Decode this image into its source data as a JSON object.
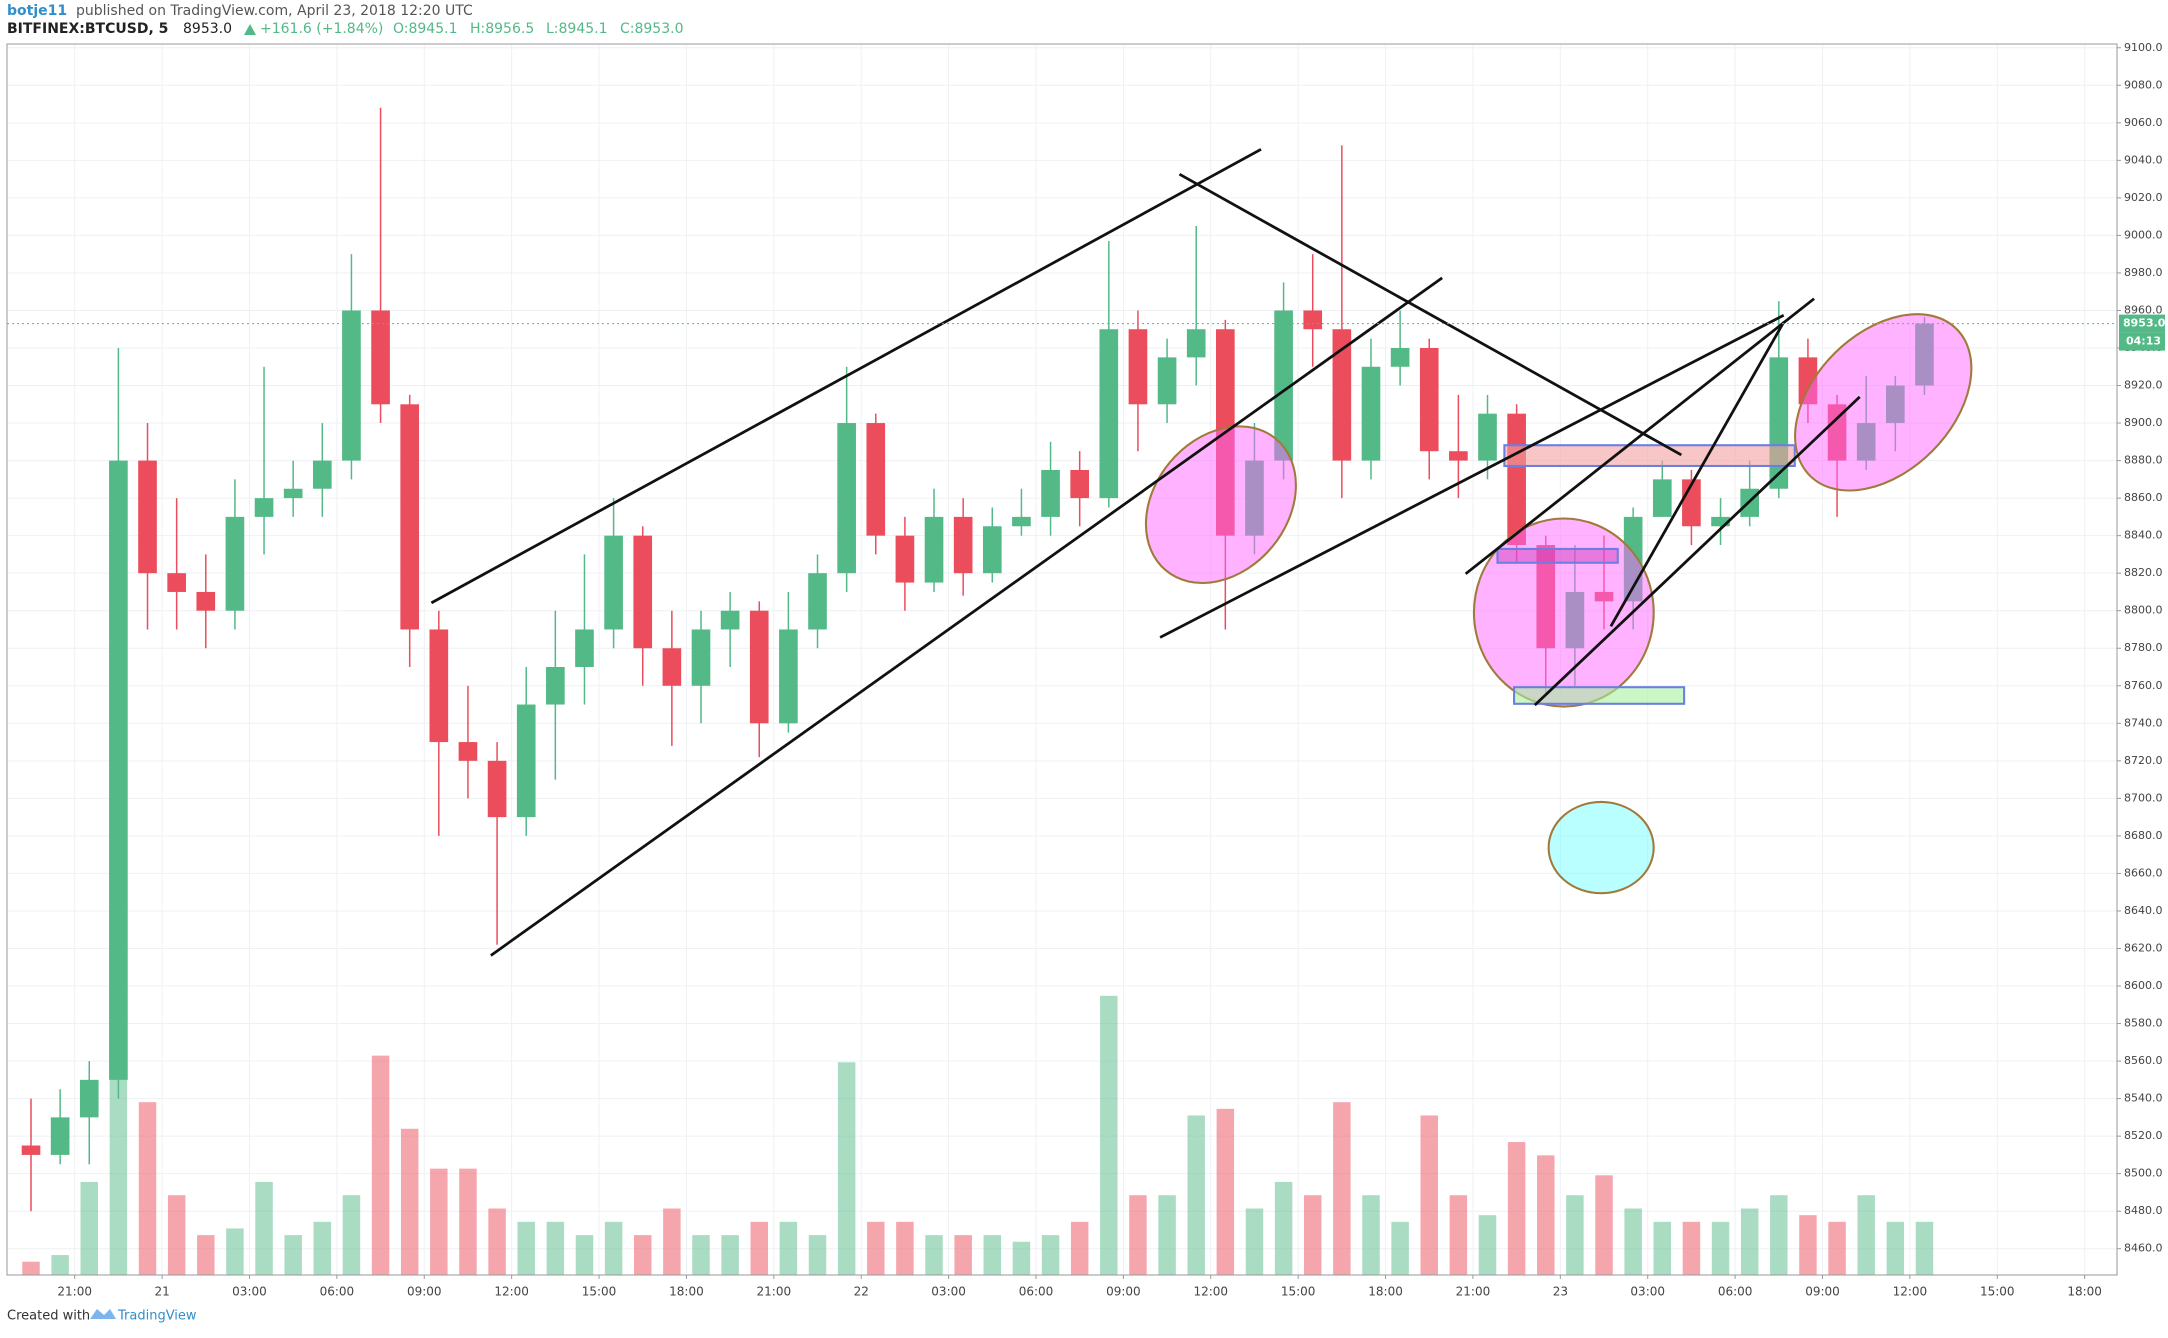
{
  "header": {
    "author": "botje11",
    "published": "published on TradingView.com, April 23, 2018 12:20 UTC",
    "symbol": "BITFINEX:BTCUSD, 5",
    "price": "8953.0",
    "change": "+161.6 (+1.84%)",
    "ohlc": [
      "O:8945.1",
      "H:8956.5",
      "L:8945.1",
      "C:8953.0"
    ]
  },
  "chart_data": {
    "type": "candlestick",
    "categories": [
      null,
      null,
      "21:00",
      null,
      null,
      "21",
      null,
      null,
      "03:00",
      null,
      null,
      "06:00",
      null,
      null,
      "09:00",
      null,
      null,
      "12:00",
      null,
      null,
      "15:00",
      null,
      null,
      "18:00",
      null,
      null,
      "21:00",
      null,
      null,
      "22",
      null,
      null,
      "03:00",
      null,
      null,
      "06:00",
      null,
      null,
      "09:00",
      null,
      null,
      "12:00",
      null,
      null,
      "15:00",
      null,
      null,
      "18:00",
      null,
      null,
      "21:00",
      null,
      null,
      "23",
      null,
      null,
      "03:00",
      null,
      null,
      "06:00",
      null,
      null,
      "09:00",
      null,
      null,
      "12:00",
      null,
      null,
      "15:00",
      null,
      null,
      "18:00"
    ],
    "ohlc": [
      [
        8515,
        8540,
        8480,
        8510
      ],
      [
        8510,
        8545,
        8505,
        8530
      ],
      [
        8530,
        8560,
        8505,
        8550
      ],
      [
        8550,
        8940,
        8540,
        8880
      ],
      [
        8880,
        8900,
        8790,
        8820
      ],
      [
        8820,
        8860,
        8790,
        8810
      ],
      [
        8810,
        8830,
        8780,
        8800
      ],
      [
        8800,
        8870,
        8790,
        8850
      ],
      [
        8850,
        8930,
        8830,
        8860
      ],
      [
        8860,
        8880,
        8850,
        8865
      ],
      [
        8865,
        8900,
        8850,
        8880
      ],
      [
        8880,
        8990,
        8870,
        8960
      ],
      [
        8960,
        9068,
        8900,
        8910
      ],
      [
        8910,
        8915,
        8770,
        8790
      ],
      [
        8790,
        8800,
        8680,
        8730
      ],
      [
        8730,
        8760,
        8700,
        8720
      ],
      [
        8720,
        8730,
        8622,
        8690
      ],
      [
        8690,
        8770,
        8680,
        8750
      ],
      [
        8750,
        8800,
        8710,
        8770
      ],
      [
        8770,
        8830,
        8750,
        8790
      ],
      [
        8790,
        8860,
        8780,
        8840
      ],
      [
        8840,
        8845,
        8760,
        8780
      ],
      [
        8780,
        8800,
        8728,
        8760
      ],
      [
        8760,
        8800,
        8740,
        8790
      ],
      [
        8790,
        8810,
        8770,
        8800
      ],
      [
        8800,
        8805,
        8722,
        8740
      ],
      [
        8740,
        8810,
        8735,
        8790
      ],
      [
        8790,
        8830,
        8780,
        8820
      ],
      [
        8820,
        8930,
        8810,
        8900
      ],
      [
        8900,
        8905,
        8830,
        8840
      ],
      [
        8840,
        8850,
        8800,
        8815
      ],
      [
        8815,
        8865,
        8810,
        8850
      ],
      [
        8850,
        8860,
        8808,
        8820
      ],
      [
        8820,
        8855,
        8815,
        8845
      ],
      [
        8845,
        8865,
        8840,
        8850
      ],
      [
        8850,
        8890,
        8840,
        8875
      ],
      [
        8875,
        8885,
        8845,
        8860
      ],
      [
        8860,
        8997,
        8855,
        8950
      ],
      [
        8950,
        8960,
        8885,
        8910
      ],
      [
        8910,
        8945,
        8900,
        8935
      ],
      [
        8935,
        9005,
        8920,
        8950
      ],
      [
        8950,
        8955,
        8790,
        8840
      ],
      [
        8840,
        8900,
        8830,
        8880
      ],
      [
        8880,
        8975,
        8870,
        8960
      ],
      [
        8960,
        8990,
        8930,
        8950
      ],
      [
        8950,
        9048,
        8860,
        8880
      ],
      [
        8880,
        8945,
        8870,
        8930
      ],
      [
        8930,
        8960,
        8920,
        8940
      ],
      [
        8940,
        8945,
        8870,
        8885
      ],
      [
        8885,
        8915,
        8860,
        8880
      ],
      [
        8880,
        8915,
        8870,
        8905
      ],
      [
        8905,
        8910,
        8825,
        8835
      ],
      [
        8835,
        8840,
        8755,
        8780
      ],
      [
        8780,
        8835,
        8760,
        8810
      ],
      [
        8810,
        8840,
        8790,
        8805
      ],
      [
        8805,
        8855,
        8790,
        8850
      ],
      [
        8850,
        8880,
        8850,
        8870
      ],
      [
        8870,
        8875,
        8835,
        8845
      ],
      [
        8845,
        8860,
        8835,
        8850
      ],
      [
        8850,
        8880,
        8845,
        8865
      ],
      [
        8865,
        8965,
        8860,
        8935
      ],
      [
        8935,
        8945,
        8900,
        8910
      ],
      [
        8910,
        8915,
        8850,
        8880
      ],
      [
        8880,
        8925,
        8875,
        8900
      ],
      [
        8900,
        8925,
        8885,
        8920
      ],
      [
        8920,
        8956.5,
        8915,
        8953
      ],
      null,
      null,
      null,
      null,
      null,
      null
    ],
    "volume": [
      10,
      15,
      70,
      215,
      130,
      60,
      30,
      35,
      70,
      30,
      40,
      60,
      165,
      110,
      80,
      80,
      50,
      40,
      40,
      30,
      40,
      30,
      50,
      30,
      30,
      40,
      40,
      30,
      160,
      40,
      40,
      30,
      30,
      30,
      25,
      30,
      40,
      210,
      60,
      60,
      120,
      125,
      50,
      70,
      60,
      130,
      60,
      40,
      120,
      60,
      45,
      100,
      90,
      60,
      75,
      50,
      40,
      40,
      40,
      50,
      60,
      45,
      40,
      60,
      40,
      40,
      null,
      null,
      null,
      null,
      null,
      null
    ],
    "volume_lim": [
      0,
      250
    ],
    "up_color": "#53b987",
    "down_color": "#eb4d5c",
    "ylim": [
      8446,
      9102
    ],
    "yticks": [
      {
        "value": 8460,
        "label": "8460.0"
      },
      {
        "value": 8480,
        "label": "8480.0"
      },
      {
        "value": 8500,
        "label": "8500.0"
      },
      {
        "value": 8520,
        "label": "8520.0"
      },
      {
        "value": 8540,
        "label": "8540.0"
      },
      {
        "value": 8560,
        "label": "8560.0"
      },
      {
        "value": 8580,
        "label": "8580.0"
      },
      {
        "value": 8600,
        "label": "8600.0"
      },
      {
        "value": 8620,
        "label": "8620.0"
      },
      {
        "value": 8640,
        "label": "8640.0"
      },
      {
        "value": 8660,
        "label": "8660.0"
      },
      {
        "value": 8680,
        "label": "8680.0"
      },
      {
        "value": 8700,
        "label": "8700.0"
      },
      {
        "value": 8720,
        "label": "8720.0"
      },
      {
        "value": 8740,
        "label": "8740.0"
      },
      {
        "value": 8760,
        "label": "8760.0"
      },
      {
        "value": 8780,
        "label": "8780.0"
      },
      {
        "value": 8800,
        "label": "8800.0"
      },
      {
        "value": 8820,
        "label": "8820.0"
      },
      {
        "value": 8840,
        "label": "8840.0"
      },
      {
        "value": 8860,
        "label": "8860.0"
      },
      {
        "value": 8880,
        "label": "8880.0"
      },
      {
        "value": 8900,
        "label": "8900.0"
      },
      {
        "value": 8920,
        "label": "8920.0"
      },
      {
        "value": 8940,
        "label": "8940.0"
      },
      {
        "value": 8960,
        "label": "8960.0"
      },
      {
        "value": 8980,
        "label": "8980.0"
      },
      {
        "value": 9000,
        "label": "9000.0"
      },
      {
        "value": 9020,
        "label": "9020.0"
      },
      {
        "value": 9040,
        "label": "9040.0"
      },
      {
        "value": 9060,
        "label": "9060.0"
      },
      {
        "value": 9080,
        "label": "9080.0"
      },
      {
        "value": 9100,
        "label": "9100.0"
      }
    ],
    "grid": true,
    "price_tag": "8953.0",
    "countdown": "04:13"
  },
  "footer": {
    "created_with": "Created with",
    "brand": "TradingView"
  }
}
